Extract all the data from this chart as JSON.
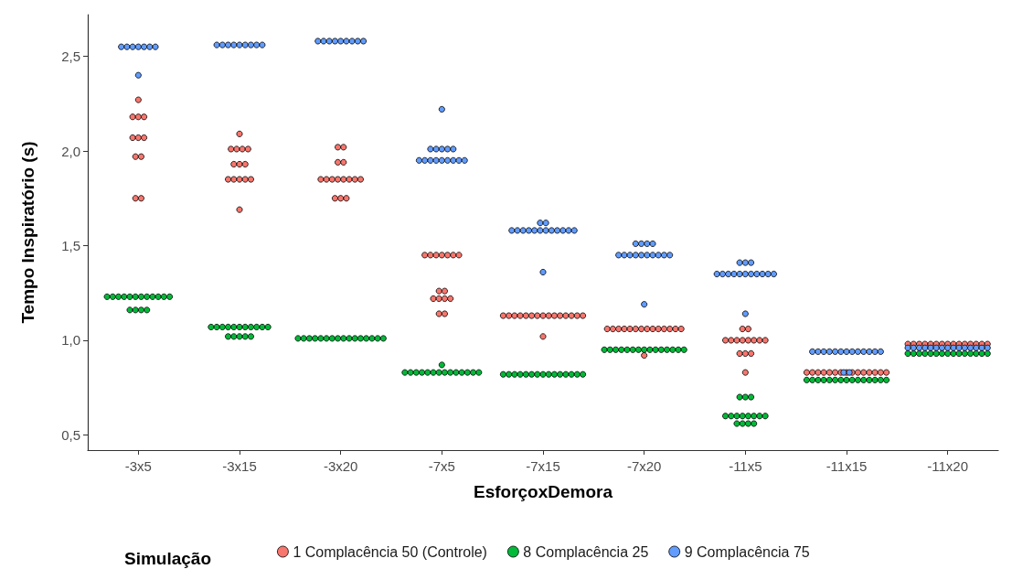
{
  "chart_data": {
    "type": "scatter",
    "xlabel": "EsforçoxDemora",
    "ylabel": "Tempo Inspiratório (s)",
    "legend_title": "Simulação",
    "legend": "bottom",
    "marker": "circle",
    "grid": false,
    "categories": [
      "-3x5",
      "-3x15",
      "-3x20",
      "-7x5",
      "-7x15",
      "-7x20",
      "-11x5",
      "-11x15",
      "-11x20"
    ],
    "ylim": [
      0.42,
      2.72
    ],
    "yticks": [
      {
        "value": 0.5,
        "label": "0,5"
      },
      {
        "value": 1,
        "label": "1,0"
      },
      {
        "value": 1.5,
        "label": "1,5"
      },
      {
        "value": 2,
        "label": "2,0"
      },
      {
        "value": 2.5,
        "label": "2,5"
      }
    ],
    "series": [
      {
        "name": "1 Complacência 50 (Controle)",
        "color": "#f8766d",
        "x": [
          "-3x5",
          "-3x5",
          "-3x5",
          "-3x5",
          "-3x5",
          "-3x5",
          "-3x5",
          "-3x5",
          "-3x5",
          "-3x5",
          "-3x5",
          "-3x15",
          "-3x15",
          "-3x15",
          "-3x15",
          "-3x15",
          "-3x15",
          "-3x15",
          "-3x15",
          "-3x15",
          "-3x15",
          "-3x15",
          "-3x15",
          "-3x15",
          "-3x15",
          "-3x20",
          "-3x20",
          "-3x20",
          "-3x20",
          "-3x20",
          "-3x20",
          "-3x20",
          "-3x20",
          "-3x20",
          "-3x20",
          "-3x20",
          "-3x20",
          "-3x20",
          "-3x20",
          "-3x20",
          "-7x5",
          "-7x5",
          "-7x5",
          "-7x5",
          "-7x5",
          "-7x5",
          "-7x5",
          "-7x5",
          "-7x5",
          "-7x5",
          "-7x5",
          "-7x5",
          "-7x5",
          "-7x5",
          "-7x5",
          "-7x15",
          "-7x15",
          "-7x15",
          "-7x15",
          "-7x15",
          "-7x15",
          "-7x15",
          "-7x15",
          "-7x15",
          "-7x15",
          "-7x15",
          "-7x15",
          "-7x15",
          "-7x15",
          "-7x15",
          "-7x15",
          "-7x20",
          "-7x20",
          "-7x20",
          "-7x20",
          "-7x20",
          "-7x20",
          "-7x20",
          "-7x20",
          "-7x20",
          "-7x20",
          "-7x20",
          "-7x20",
          "-7x20",
          "-7x20",
          "-7x20",
          "-11x5",
          "-11x5",
          "-11x5",
          "-11x5",
          "-11x5",
          "-11x5",
          "-11x5",
          "-11x5",
          "-11x5",
          "-11x5",
          "-11x5",
          "-11x5",
          "-11x5",
          "-11x5",
          "-11x15",
          "-11x15",
          "-11x15",
          "-11x15",
          "-11x15",
          "-11x15",
          "-11x15",
          "-11x15",
          "-11x15",
          "-11x15",
          "-11x15",
          "-11x15",
          "-11x15",
          "-11x15",
          "-11x15",
          "-11x20",
          "-11x20",
          "-11x20",
          "-11x20",
          "-11x20",
          "-11x20",
          "-11x20",
          "-11x20",
          "-11x20",
          "-11x20",
          "-11x20",
          "-11x20",
          "-11x20",
          "-11x20",
          "-11x20"
        ],
        "values": [
          2.27,
          2.18,
          2.18,
          2.18,
          2.07,
          2.07,
          2.07,
          1.97,
          1.97,
          1.75,
          1.75,
          2.09,
          2.01,
          2.01,
          2.01,
          2.01,
          1.93,
          1.93,
          1.93,
          1.85,
          1.85,
          1.85,
          1.85,
          1.85,
          1.69,
          2.02,
          2.02,
          1.94,
          1.94,
          1.85,
          1.85,
          1.85,
          1.85,
          1.85,
          1.85,
          1.85,
          1.85,
          1.75,
          1.75,
          1.75,
          1.45,
          1.45,
          1.45,
          1.45,
          1.45,
          1.45,
          1.45,
          1.26,
          1.26,
          1.22,
          1.22,
          1.22,
          1.22,
          1.14,
          1.14,
          1.13,
          1.13,
          1.13,
          1.13,
          1.13,
          1.13,
          1.13,
          1.13,
          1.13,
          1.13,
          1.13,
          1.13,
          1.13,
          1.13,
          1.13,
          1.02,
          1.06,
          1.06,
          1.06,
          1.06,
          1.06,
          1.06,
          1.06,
          1.06,
          1.06,
          1.06,
          1.06,
          1.06,
          1.06,
          1.06,
          0.92,
          1.06,
          1.06,
          1.0,
          1.0,
          1.0,
          1.0,
          1.0,
          1.0,
          1.0,
          1.0,
          0.93,
          0.93,
          0.93,
          0.83,
          0.83,
          0.83,
          0.83,
          0.83,
          0.83,
          0.83,
          0.83,
          0.83,
          0.83,
          0.83,
          0.83,
          0.83,
          0.83,
          0.83,
          0.83,
          0.98,
          0.98,
          0.98,
          0.98,
          0.98,
          0.98,
          0.98,
          0.98,
          0.98,
          0.98,
          0.98,
          0.98,
          0.98,
          0.98,
          0.98
        ]
      },
      {
        "name": "8 Complacência 25",
        "color": "#00ba38",
        "x": [
          "-3x5",
          "-3x5",
          "-3x5",
          "-3x5",
          "-3x5",
          "-3x5",
          "-3x5",
          "-3x5",
          "-3x5",
          "-3x5",
          "-3x5",
          "-3x5",
          "-3x5",
          "-3x5",
          "-3x5",
          "-3x5",
          "-3x15",
          "-3x15",
          "-3x15",
          "-3x15",
          "-3x15",
          "-3x15",
          "-3x15",
          "-3x15",
          "-3x15",
          "-3x15",
          "-3x15",
          "-3x15",
          "-3x15",
          "-3x15",
          "-3x15",
          "-3x15",
          "-3x20",
          "-3x20",
          "-3x20",
          "-3x20",
          "-3x20",
          "-3x20",
          "-3x20",
          "-3x20",
          "-3x20",
          "-3x20",
          "-3x20",
          "-3x20",
          "-3x20",
          "-3x20",
          "-3x20",
          "-3x20",
          "-7x5",
          "-7x5",
          "-7x5",
          "-7x5",
          "-7x5",
          "-7x5",
          "-7x5",
          "-7x5",
          "-7x5",
          "-7x5",
          "-7x5",
          "-7x5",
          "-7x5",
          "-7x5",
          "-7x5",
          "-7x15",
          "-7x15",
          "-7x15",
          "-7x15",
          "-7x15",
          "-7x15",
          "-7x15",
          "-7x15",
          "-7x15",
          "-7x15",
          "-7x15",
          "-7x15",
          "-7x15",
          "-7x15",
          "-7x15",
          "-7x20",
          "-7x20",
          "-7x20",
          "-7x20",
          "-7x20",
          "-7x20",
          "-7x20",
          "-7x20",
          "-7x20",
          "-7x20",
          "-7x20",
          "-7x20",
          "-7x20",
          "-7x20",
          "-7x20",
          "-11x5",
          "-11x5",
          "-11x5",
          "-11x5",
          "-11x5",
          "-11x5",
          "-11x5",
          "-11x5",
          "-11x5",
          "-11x5",
          "-11x5",
          "-11x5",
          "-11x5",
          "-11x5",
          "-11x5",
          "-11x15",
          "-11x15",
          "-11x15",
          "-11x15",
          "-11x15",
          "-11x15",
          "-11x15",
          "-11x15",
          "-11x15",
          "-11x15",
          "-11x15",
          "-11x15",
          "-11x15",
          "-11x15",
          "-11x15",
          "-11x20",
          "-11x20",
          "-11x20",
          "-11x20",
          "-11x20",
          "-11x20",
          "-11x20",
          "-11x20",
          "-11x20",
          "-11x20",
          "-11x20",
          "-11x20",
          "-11x20",
          "-11x20",
          "-11x20"
        ],
        "values": [
          1.23,
          1.23,
          1.23,
          1.23,
          1.23,
          1.23,
          1.23,
          1.23,
          1.23,
          1.23,
          1.23,
          1.23,
          1.16,
          1.16,
          1.16,
          1.16,
          1.07,
          1.07,
          1.07,
          1.07,
          1.07,
          1.07,
          1.07,
          1.07,
          1.07,
          1.07,
          1.07,
          1.02,
          1.02,
          1.02,
          1.02,
          1.02,
          1.01,
          1.01,
          1.01,
          1.01,
          1.01,
          1.01,
          1.01,
          1.01,
          1.01,
          1.01,
          1.01,
          1.01,
          1.01,
          1.01,
          1.01,
          1.01,
          0.87,
          0.83,
          0.83,
          0.83,
          0.83,
          0.83,
          0.83,
          0.83,
          0.83,
          0.83,
          0.83,
          0.83,
          0.83,
          0.83,
          0.83,
          0.82,
          0.82,
          0.82,
          0.82,
          0.82,
          0.82,
          0.82,
          0.82,
          0.82,
          0.82,
          0.82,
          0.82,
          0.82,
          0.82,
          0.82,
          0.95,
          0.95,
          0.95,
          0.95,
          0.95,
          0.95,
          0.95,
          0.95,
          0.95,
          0.95,
          0.95,
          0.95,
          0.95,
          0.95,
          0.95,
          0.7,
          0.7,
          0.7,
          0.6,
          0.6,
          0.6,
          0.6,
          0.6,
          0.6,
          0.6,
          0.6,
          0.56,
          0.56,
          0.56,
          0.56,
          0.79,
          0.79,
          0.79,
          0.79,
          0.79,
          0.79,
          0.79,
          0.79,
          0.79,
          0.79,
          0.79,
          0.79,
          0.79,
          0.79,
          0.79,
          0.93,
          0.93,
          0.93,
          0.93,
          0.93,
          0.93,
          0.93,
          0.93,
          0.93,
          0.93,
          0.93,
          0.93,
          0.93,
          0.93,
          0.93
        ]
      },
      {
        "name": "9 Complacência 75",
        "color": "#619cff",
        "x": [
          "-3x5",
          "-3x5",
          "-3x5",
          "-3x5",
          "-3x5",
          "-3x5",
          "-3x5",
          "-3x5",
          "-3x15",
          "-3x15",
          "-3x15",
          "-3x15",
          "-3x15",
          "-3x15",
          "-3x15",
          "-3x15",
          "-3x15",
          "-3x20",
          "-3x20",
          "-3x20",
          "-3x20",
          "-3x20",
          "-3x20",
          "-3x20",
          "-3x20",
          "-3x20",
          "-7x5",
          "-7x5",
          "-7x5",
          "-7x5",
          "-7x5",
          "-7x5",
          "-7x5",
          "-7x5",
          "-7x5",
          "-7x5",
          "-7x5",
          "-7x5",
          "-7x5",
          "-7x5",
          "-7x5",
          "-7x15",
          "-7x15",
          "-7x15",
          "-7x15",
          "-7x15",
          "-7x15",
          "-7x15",
          "-7x15",
          "-7x15",
          "-7x15",
          "-7x15",
          "-7x15",
          "-7x15",
          "-7x15",
          "-7x15",
          "-7x20",
          "-7x20",
          "-7x20",
          "-7x20",
          "-7x20",
          "-7x20",
          "-7x20",
          "-7x20",
          "-7x20",
          "-7x20",
          "-7x20",
          "-7x20",
          "-7x20",
          "-7x20",
          "-7x20",
          "-11x5",
          "-11x5",
          "-11x5",
          "-11x5",
          "-11x5",
          "-11x5",
          "-11x5",
          "-11x5",
          "-11x5",
          "-11x5",
          "-11x5",
          "-11x5",
          "-11x5",
          "-11x5",
          "-11x5",
          "-11x15",
          "-11x15",
          "-11x15",
          "-11x15",
          "-11x15",
          "-11x15",
          "-11x15",
          "-11x15",
          "-11x15",
          "-11x15",
          "-11x15",
          "-11x15",
          "-11x15",
          "-11x15",
          "-11x15",
          "-11x20",
          "-11x20",
          "-11x20",
          "-11x20",
          "-11x20",
          "-11x20",
          "-11x20",
          "-11x20",
          "-11x20",
          "-11x20",
          "-11x20",
          "-11x20",
          "-11x20",
          "-11x20",
          "-11x20"
        ],
        "values": [
          2.55,
          2.55,
          2.55,
          2.55,
          2.55,
          2.55,
          2.55,
          2.4,
          2.56,
          2.56,
          2.56,
          2.56,
          2.56,
          2.56,
          2.56,
          2.56,
          2.56,
          2.58,
          2.58,
          2.58,
          2.58,
          2.58,
          2.58,
          2.58,
          2.58,
          2.58,
          2.22,
          2.01,
          2.01,
          2.01,
          2.01,
          2.01,
          1.95,
          1.95,
          1.95,
          1.95,
          1.95,
          1.95,
          1.95,
          1.95,
          1.95,
          1.62,
          1.62,
          1.58,
          1.58,
          1.58,
          1.58,
          1.58,
          1.58,
          1.58,
          1.58,
          1.58,
          1.58,
          1.58,
          1.58,
          1.36,
          1.51,
          1.51,
          1.51,
          1.51,
          1.45,
          1.45,
          1.45,
          1.45,
          1.45,
          1.45,
          1.45,
          1.45,
          1.45,
          1.45,
          1.19,
          1.41,
          1.41,
          1.41,
          1.35,
          1.35,
          1.35,
          1.35,
          1.35,
          1.35,
          1.35,
          1.35,
          1.35,
          1.35,
          1.35,
          1.14,
          0.94,
          0.94,
          0.94,
          0.94,
          0.94,
          0.94,
          0.94,
          0.94,
          0.94,
          0.94,
          0.94,
          0.94,
          0.94,
          0.83,
          0.83,
          0.96,
          0.96,
          0.96,
          0.96,
          0.96,
          0.96,
          0.96,
          0.96,
          0.96,
          0.96,
          0.96,
          0.96,
          0.96,
          0.96,
          0.96
        ]
      }
    ]
  }
}
